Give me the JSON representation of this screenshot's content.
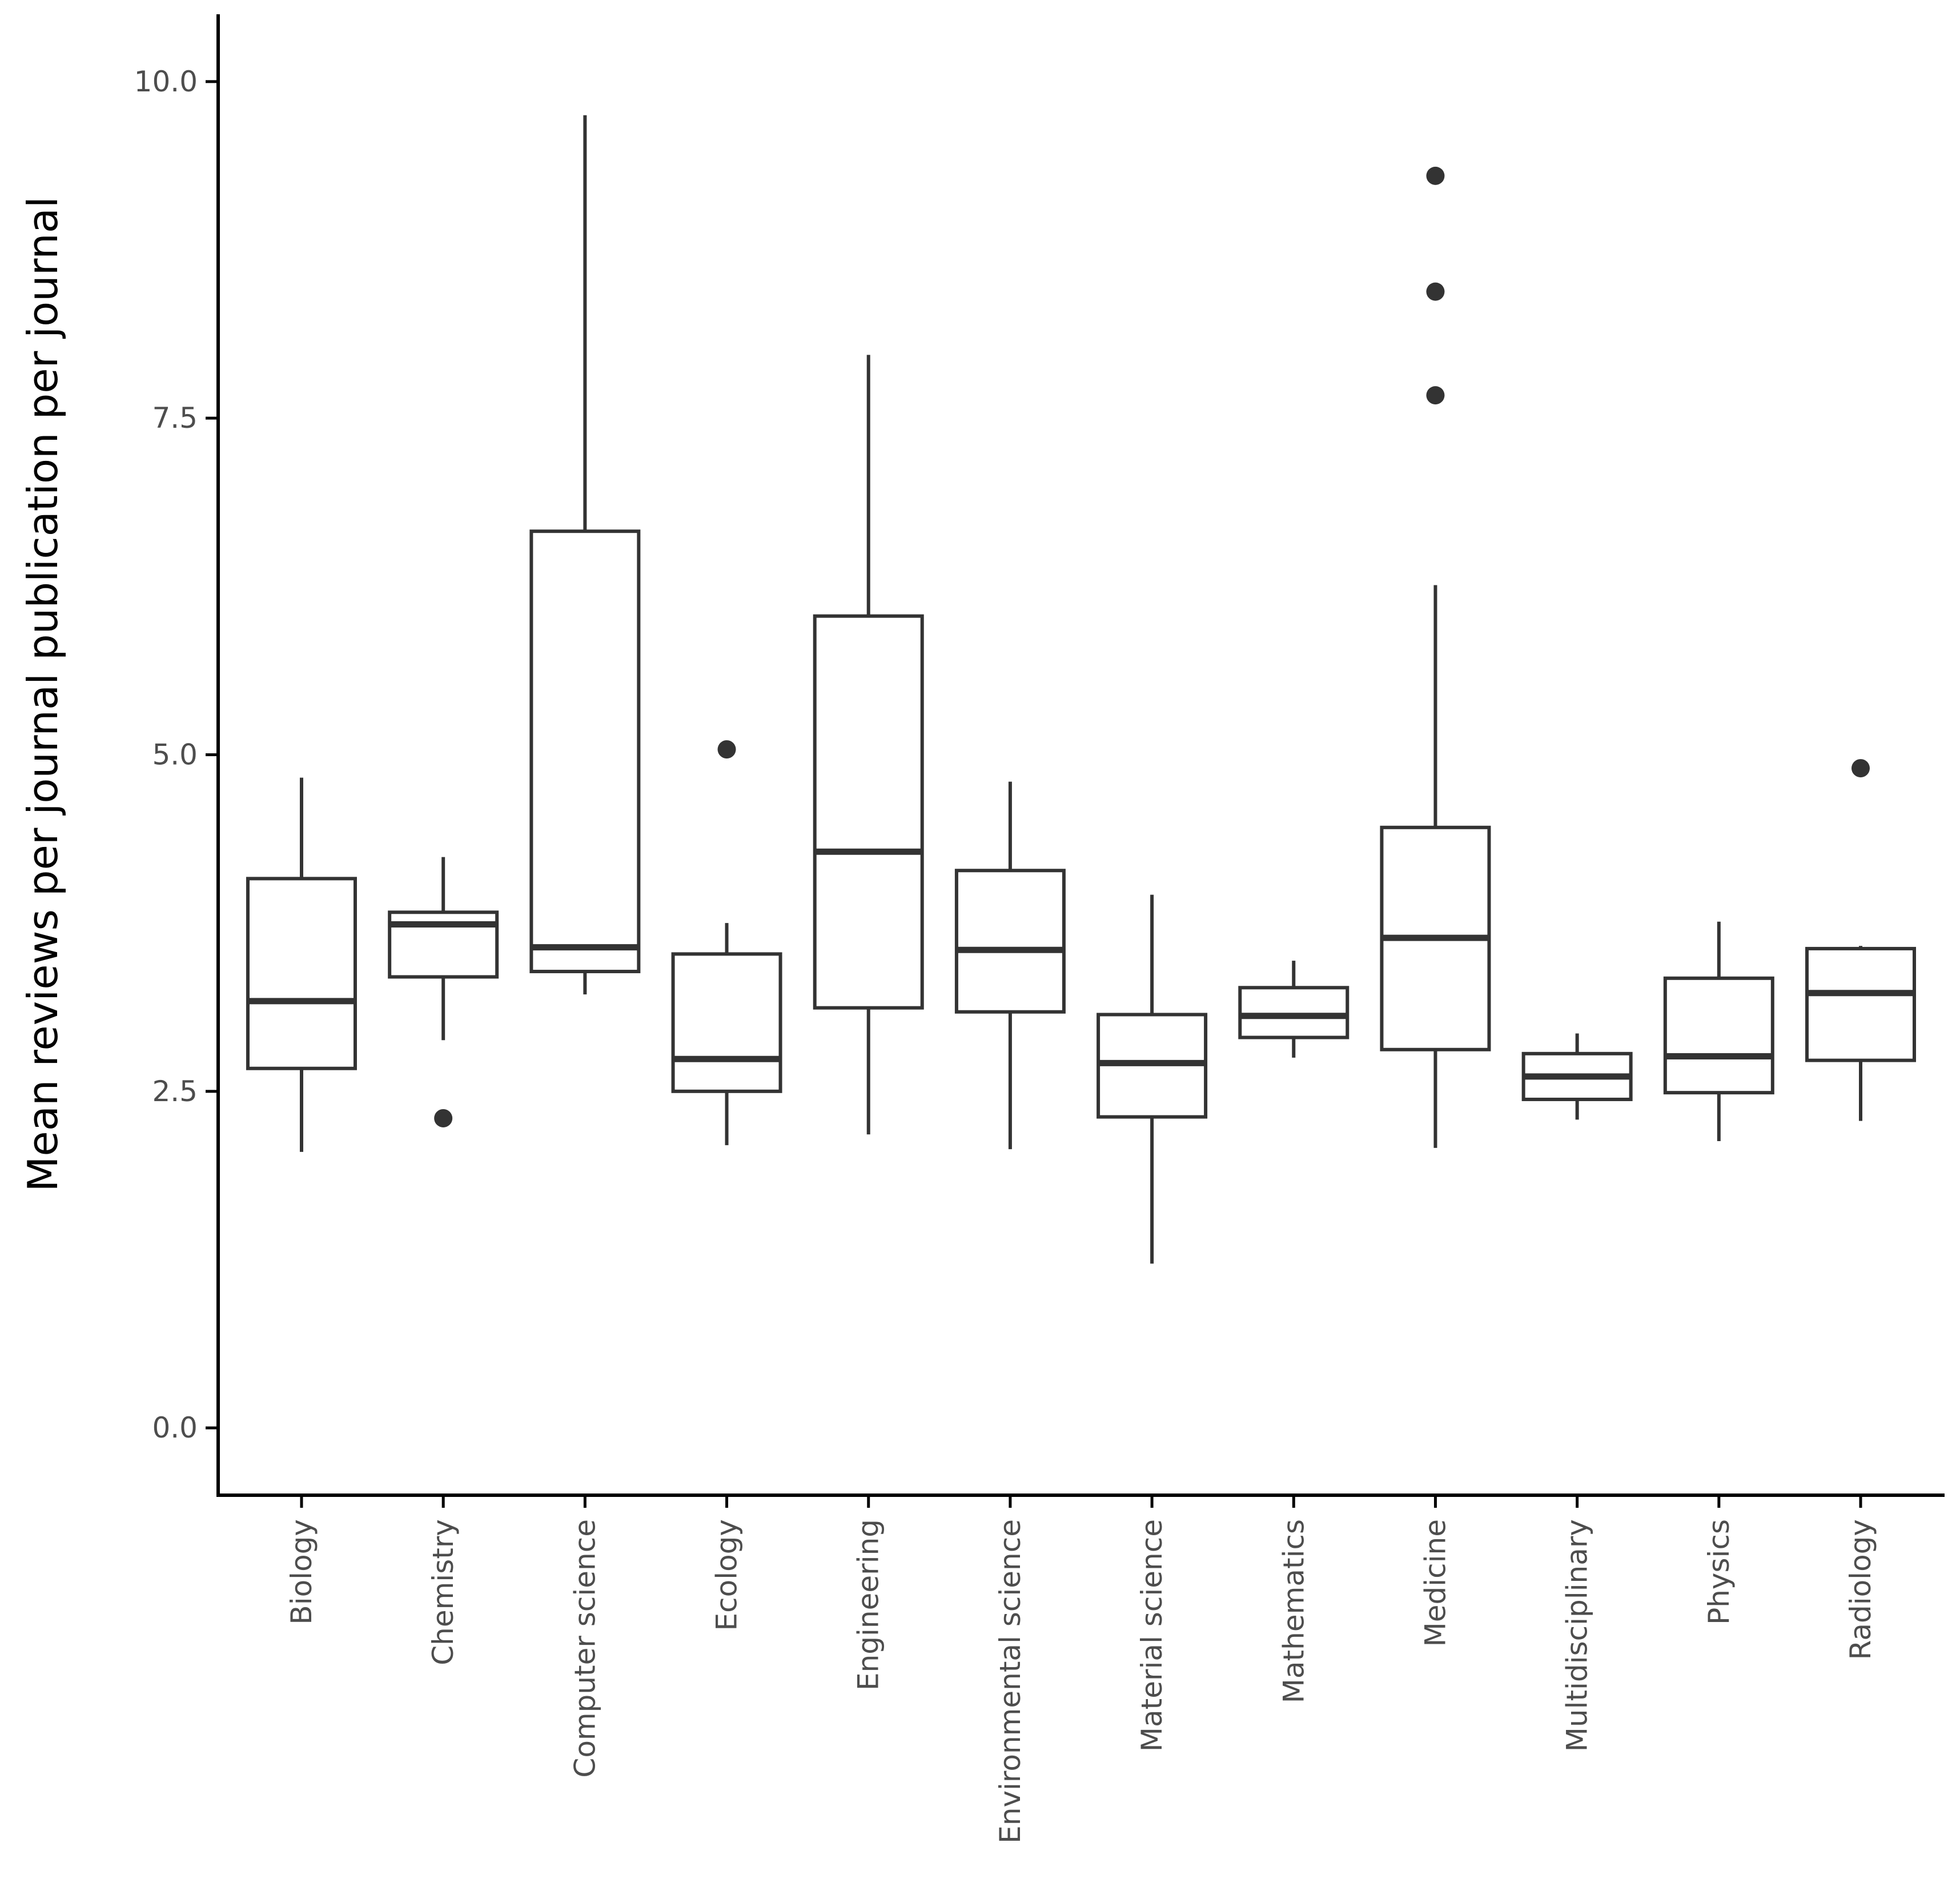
{
  "chart_data": {
    "type": "boxplot",
    "title": "",
    "xlabel": "",
    "ylabel": "Mean reviews per journal publication per journal",
    "ylim": [
      -0.5,
      10.5
    ],
    "yticks": [
      {
        "value": 0.0,
        "label": "0.0"
      },
      {
        "value": 2.5,
        "label": "2.5"
      },
      {
        "value": 5.0,
        "label": "5.0"
      },
      {
        "value": 7.5,
        "label": "7.5"
      },
      {
        "value": 10.0,
        "label": "10.0"
      }
    ],
    "grid": false,
    "categories": [
      "Biology",
      "Chemistry",
      "Computer science",
      "Ecology",
      "Engineering",
      "Environmental science",
      "Material science",
      "Mathematics",
      "Medicine",
      "Multidisciplinary",
      "Physics",
      "Radiology"
    ],
    "boxes": [
      {
        "category": "Biology",
        "whisker_low": 2.05,
        "q1": 2.67,
        "median": 3.17,
        "q3": 4.08,
        "whisker_high": 4.83,
        "outliers": []
      },
      {
        "category": "Chemistry",
        "whisker_low": 2.88,
        "q1": 3.35,
        "median": 3.74,
        "q3": 3.83,
        "whisker_high": 4.24,
        "outliers": [
          2.3
        ]
      },
      {
        "category": "Computer science",
        "whisker_low": 3.22,
        "q1": 3.39,
        "median": 3.57,
        "q3": 6.66,
        "whisker_high": 9.75,
        "outliers": []
      },
      {
        "category": "Ecology",
        "whisker_low": 2.1,
        "q1": 2.5,
        "median": 2.74,
        "q3": 3.52,
        "whisker_high": 3.75,
        "outliers": [
          5.04
        ]
      },
      {
        "category": "Engineering",
        "whisker_low": 2.18,
        "q1": 3.12,
        "median": 4.28,
        "q3": 6.03,
        "whisker_high": 7.97,
        "outliers": []
      },
      {
        "category": "Environmental science",
        "whisker_low": 2.07,
        "q1": 3.09,
        "median": 3.55,
        "q3": 4.14,
        "whisker_high": 4.8,
        "outliers": []
      },
      {
        "category": "Material science",
        "whisker_low": 1.22,
        "q1": 2.31,
        "median": 2.71,
        "q3": 3.07,
        "whisker_high": 3.96,
        "outliers": []
      },
      {
        "category": "Mathematics",
        "whisker_low": 2.75,
        "q1": 2.9,
        "median": 3.06,
        "q3": 3.27,
        "whisker_high": 3.47,
        "outliers": []
      },
      {
        "category": "Medicine",
        "whisker_low": 2.08,
        "q1": 2.81,
        "median": 3.64,
        "q3": 4.46,
        "whisker_high": 6.26,
        "outliers": [
          7.67,
          8.44,
          9.3
        ]
      },
      {
        "category": "Multidisciplinary",
        "whisker_low": 2.29,
        "q1": 2.44,
        "median": 2.61,
        "q3": 2.78,
        "whisker_high": 2.93,
        "outliers": []
      },
      {
        "category": "Physics",
        "whisker_low": 2.13,
        "q1": 2.49,
        "median": 2.76,
        "q3": 3.34,
        "whisker_high": 3.76,
        "outliers": []
      },
      {
        "category": "Radiology",
        "whisker_low": 2.28,
        "q1": 2.73,
        "median": 3.23,
        "q3": 3.56,
        "whisker_high": 3.58,
        "outliers": [
          4.9
        ]
      }
    ],
    "colors": {
      "box_stroke": "#333333",
      "axis": "#000000",
      "tick_text": "#4d4d4d",
      "title_text": "#000000"
    }
  }
}
